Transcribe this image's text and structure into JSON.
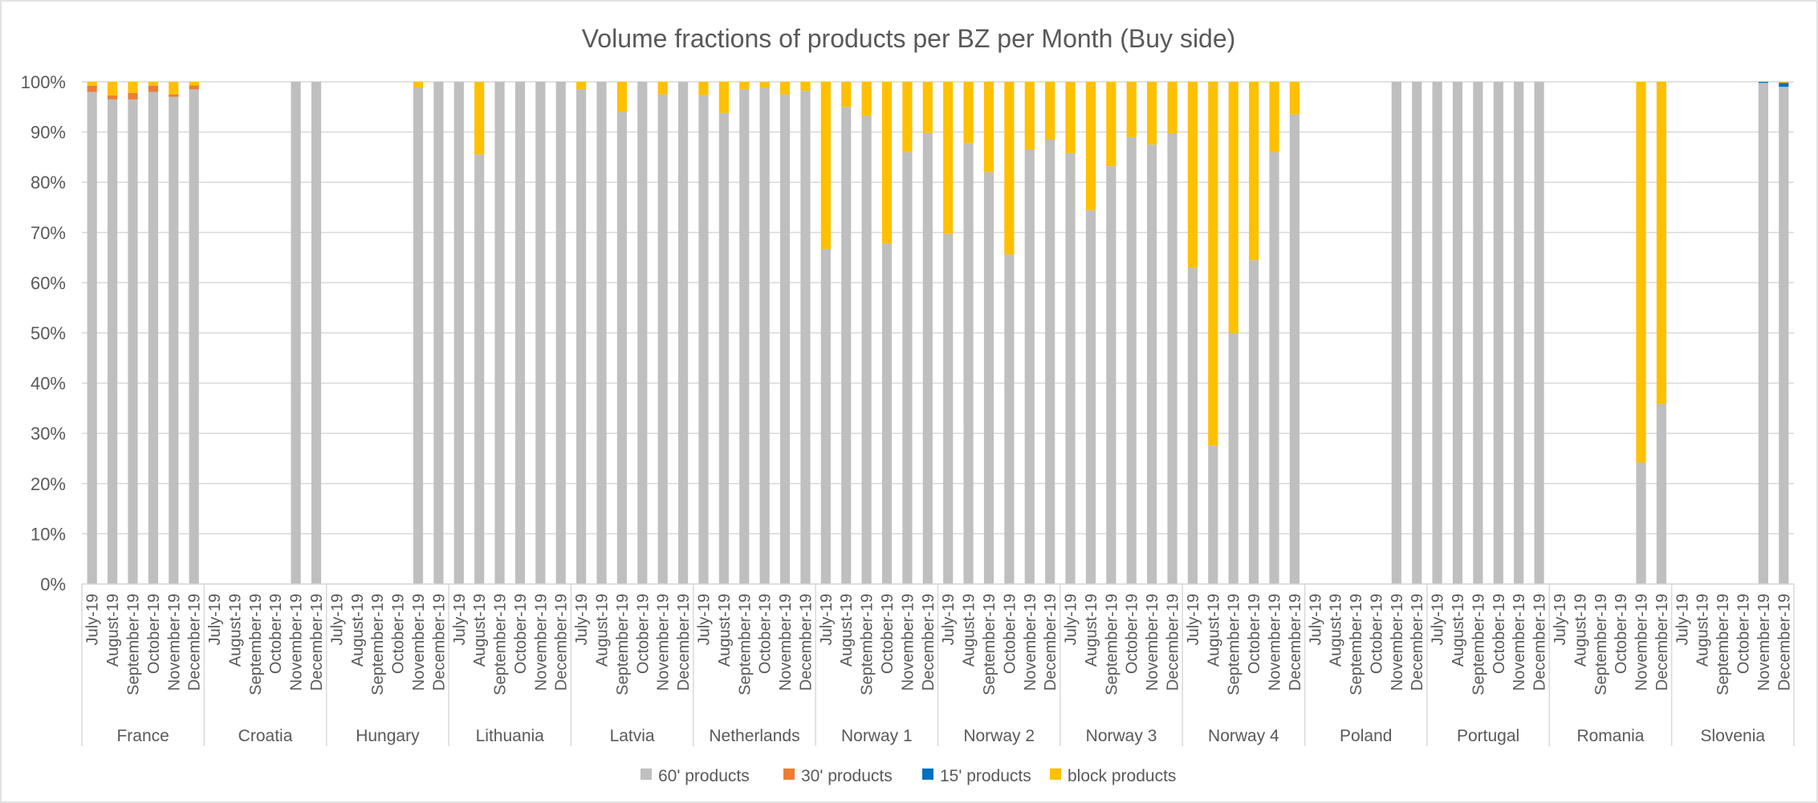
{
  "chart_data": {
    "type": "bar",
    "stacked": true,
    "title": "Volume fractions of products per BZ per Month (Buy side)",
    "xlabel": "",
    "ylabel": "",
    "ylim": [
      0,
      100
    ],
    "yticks": [
      "0%",
      "10%",
      "20%",
      "30%",
      "40%",
      "50%",
      "60%",
      "70%",
      "80%",
      "90%",
      "100%"
    ],
    "months": [
      "July-19",
      "August-19",
      "September-19",
      "October-19",
      "November-19",
      "December-19"
    ],
    "groups": [
      "France",
      "Croatia",
      "Hungary",
      "Lithuania",
      "Latvia",
      "Netherlands",
      "Norway 1",
      "Norway 2",
      "Norway 3",
      "Norway 4",
      "Poland",
      "Portugal",
      "Romania",
      "Slovenia"
    ],
    "legend_position": "bottom",
    "grid": true,
    "series": [
      {
        "name": "60' products",
        "color": "#bfbfbf",
        "values": [
          98,
          96.5,
          96.5,
          98,
          97,
          98.5,
          0,
          0,
          0,
          0,
          100,
          100,
          0,
          0,
          0,
          0,
          98.8,
          100,
          100,
          85.5,
          100,
          100,
          100,
          100,
          98.5,
          100,
          94,
          100,
          97.5,
          100,
          97.3,
          93.8,
          98.5,
          98.8,
          97.5,
          98.2,
          66.7,
          95,
          93.2,
          67.8,
          86,
          89.8,
          69.7,
          87.8,
          82,
          65.6,
          86.5,
          88.5,
          85.8,
          74.4,
          83.2,
          89,
          87.5,
          89.7,
          63,
          27.5,
          50,
          64.5,
          86,
          93.5,
          0,
          0,
          0,
          0,
          100,
          100,
          100,
          100,
          100,
          100,
          100,
          100,
          0,
          0,
          0,
          0,
          24.2,
          35.8,
          0,
          0,
          0,
          0,
          99.8,
          99
        ]
      },
      {
        "name": "30' products",
        "color": "#ed7d31",
        "values": [
          1.2,
          0.8,
          1.3,
          1.2,
          0.5,
          0.8,
          0,
          0,
          0,
          0,
          0,
          0,
          0,
          0,
          0,
          0,
          0,
          0,
          0,
          0,
          0,
          0,
          0,
          0,
          0,
          0,
          0,
          0,
          0,
          0,
          0,
          0,
          0,
          0,
          0,
          0,
          0,
          0,
          0,
          0,
          0,
          0,
          0,
          0,
          0,
          0,
          0,
          0,
          0,
          0,
          0,
          0,
          0,
          0,
          0,
          0,
          0,
          0,
          0,
          0,
          0,
          0,
          0,
          0,
          0,
          0,
          0,
          0,
          0,
          0,
          0,
          0,
          0,
          0,
          0,
          0,
          0,
          0,
          0,
          0,
          0,
          0,
          0,
          0
        ]
      },
      {
        "name": "15' products",
        "color": "#0070c0",
        "values": [
          0,
          0,
          0,
          0,
          0,
          0,
          0,
          0,
          0,
          0,
          0,
          0,
          0,
          0,
          0,
          0,
          0,
          0,
          0,
          0,
          0,
          0,
          0,
          0,
          0,
          0,
          0,
          0,
          0,
          0,
          0,
          0,
          0,
          0,
          0,
          0,
          0,
          0,
          0,
          0,
          0,
          0,
          0,
          0,
          0,
          0,
          0,
          0,
          0,
          0,
          0,
          0,
          0,
          0,
          0,
          0,
          0,
          0,
          0,
          0,
          0,
          0,
          0,
          0,
          0,
          0,
          0,
          0,
          0,
          0,
          0,
          0,
          0,
          0,
          0,
          0,
          0,
          0,
          0,
          0,
          0,
          0,
          0.2,
          0.8
        ]
      },
      {
        "name": "block products",
        "color": "#ffc000",
        "values": [
          0.8,
          2.7,
          2.2,
          0.8,
          2.5,
          0.7,
          0,
          0,
          0,
          0,
          0,
          0,
          0,
          0,
          0,
          0,
          1.2,
          0,
          0,
          14.5,
          0,
          0,
          0,
          0,
          1.5,
          0,
          6,
          0,
          2.5,
          0,
          2.7,
          6.2,
          1.5,
          1.2,
          2.5,
          1.8,
          33.3,
          5,
          6.8,
          32.2,
          14,
          10.2,
          30.3,
          12.2,
          18,
          34.4,
          13.5,
          11.5,
          14.2,
          25.6,
          16.8,
          11,
          12.5,
          10.3,
          37,
          72.5,
          50,
          35.5,
          14,
          6.5,
          0,
          0,
          0,
          0,
          0,
          0,
          0,
          0,
          0,
          0,
          0,
          0,
          0,
          0,
          0,
          0,
          75.8,
          64.2,
          0,
          0,
          0,
          0,
          0,
          0.2
        ]
      }
    ]
  }
}
